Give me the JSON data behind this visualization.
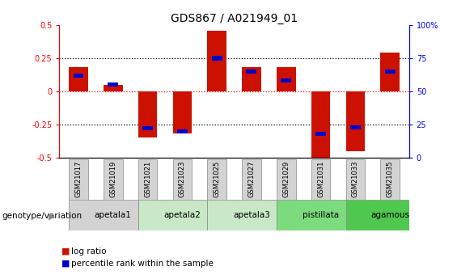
{
  "title": "GDS867 / A021949_01",
  "samples": [
    "GSM21017",
    "GSM21019",
    "GSM21021",
    "GSM21023",
    "GSM21025",
    "GSM21027",
    "GSM21029",
    "GSM21031",
    "GSM21033",
    "GSM21035"
  ],
  "log_ratio": [
    0.18,
    0.05,
    -0.35,
    -0.32,
    0.46,
    0.18,
    0.18,
    -0.52,
    -0.45,
    0.29
  ],
  "percentile": [
    62,
    55,
    22,
    20,
    75,
    65,
    58,
    18,
    23,
    65
  ],
  "bar_color": "#cc1100",
  "pct_color": "#0000cc",
  "ylim": [
    -0.5,
    0.5
  ],
  "yticks_left": [
    -0.5,
    -0.25,
    0,
    0.25,
    0.5
  ],
  "yticks_right": [
    0,
    25,
    50,
    75,
    100
  ],
  "dotted_lines": [
    -0.25,
    0.0,
    0.25
  ],
  "genotype_groups": [
    {
      "label": "apetala1",
      "start": 0,
      "end": 2,
      "color": "#d3d3d3"
    },
    {
      "label": "apetala2",
      "start": 2,
      "end": 4,
      "color": "#c8e8c8"
    },
    {
      "label": "apetala3",
      "start": 4,
      "end": 6,
      "color": "#c8e8c8"
    },
    {
      "label": "pistillata",
      "start": 6,
      "end": 8,
      "color": "#7cdb7c"
    },
    {
      "label": "agamous",
      "start": 8,
      "end": 10,
      "color": "#50c850"
    }
  ],
  "legend_log_ratio_label": "log ratio",
  "legend_pct_label": "percentile rank within the sample",
  "genotype_label": "genotype/variation",
  "sample_box_color": "#d3d3d3",
  "title_fontsize": 10,
  "tick_fontsize": 7,
  "bar_width": 0.55
}
